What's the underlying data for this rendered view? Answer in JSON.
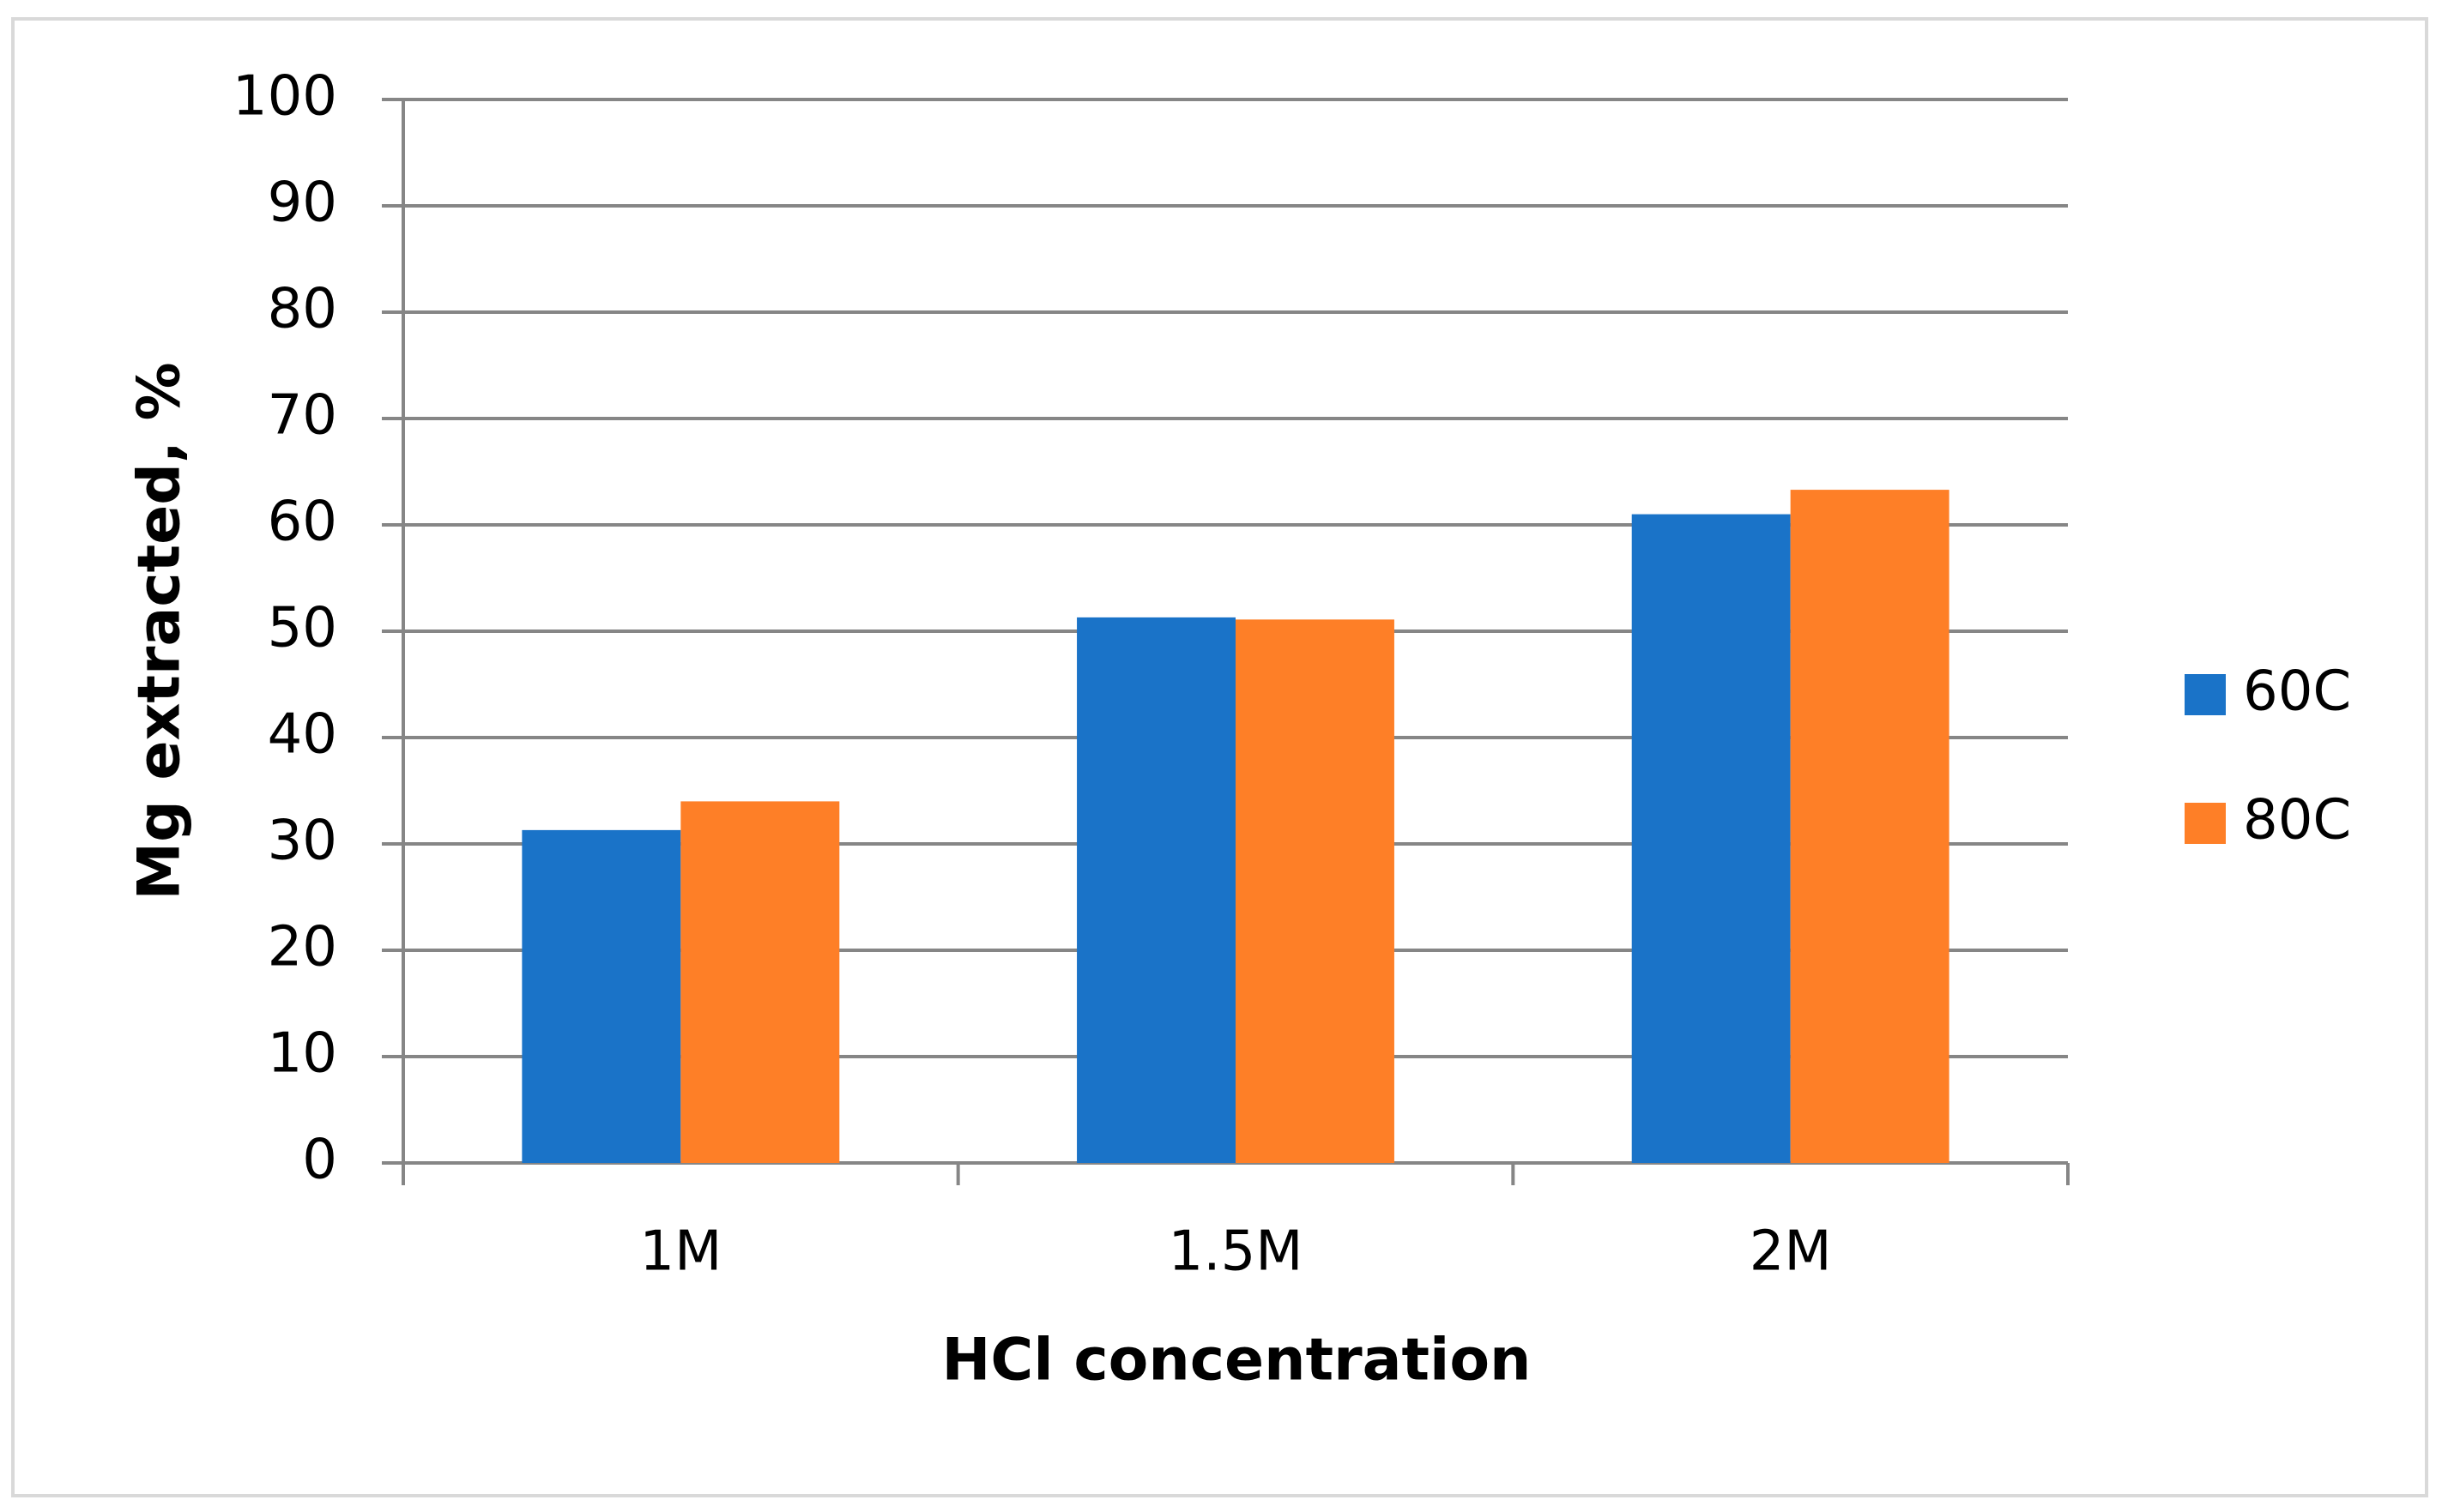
{
  "chart_data": {
    "type": "bar",
    "x_label": "HCl concentration",
    "y_label": "Mg extracted, %",
    "categories": [
      "1M",
      "1.5M",
      "2M"
    ],
    "series": [
      {
        "name": "60C",
        "color": "#1a73c8",
        "values": [
          31.3,
          51.3,
          61
        ]
      },
      {
        "name": "80C",
        "color": "#fe7f27",
        "values": [
          34,
          51.1,
          63.3
        ]
      }
    ],
    "ylim": [
      0,
      100
    ],
    "yticks": [
      0,
      10,
      20,
      30,
      40,
      50,
      60,
      70,
      80,
      90,
      100
    ],
    "grid": true,
    "legend": "right"
  }
}
